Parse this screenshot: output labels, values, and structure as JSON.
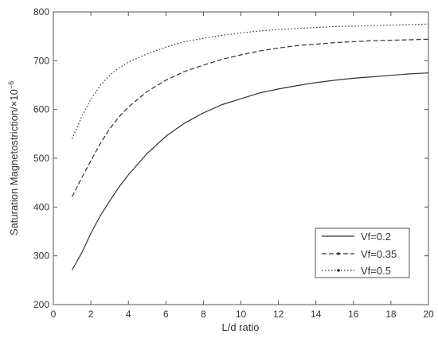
{
  "chart_data": {
    "type": "line",
    "xlabel": "L/d ratio",
    "ylabel": "Saturation Magnetostriction/×10",
    "ylabel_exponent": "−6",
    "xlim": [
      0,
      20
    ],
    "ylim": [
      200,
      800
    ],
    "xticks": [
      0,
      2,
      4,
      6,
      8,
      10,
      12,
      14,
      16,
      18,
      20
    ],
    "yticks": [
      200,
      300,
      400,
      500,
      600,
      700,
      800
    ],
    "grid": false,
    "legend_position": "bottom-right",
    "x": [
      1,
      1.5,
      2,
      2.5,
      3,
      3.5,
      4,
      5,
      6,
      7,
      8,
      9,
      10,
      11,
      12,
      13,
      14,
      15,
      16,
      17,
      18,
      19,
      20
    ],
    "series": [
      {
        "name": "Vf=0.2",
        "line_style": "solid",
        "values": [
          271,
          305,
          346,
          382,
          412,
          441,
          466,
          510,
          545,
          572,
          593,
          610,
          622,
          634,
          642,
          649,
          655,
          660,
          664,
          667,
          670,
          673,
          675
        ]
      },
      {
        "name": "Vf=0.35",
        "line_style": "dashed",
        "values": [
          421,
          459,
          495,
          530,
          560,
          585,
          605,
          637,
          660,
          678,
          691,
          703,
          712,
          720,
          726,
          731,
          734,
          737,
          739,
          741,
          742,
          743,
          744
        ]
      },
      {
        "name": "Vf=0.5",
        "line_style": "dotted",
        "values": [
          540,
          584,
          621,
          649,
          670,
          685,
          697,
          714,
          728,
          739,
          746,
          752,
          757,
          761,
          764,
          766,
          768,
          770,
          771,
          772,
          773,
          774,
          775
        ]
      }
    ]
  }
}
